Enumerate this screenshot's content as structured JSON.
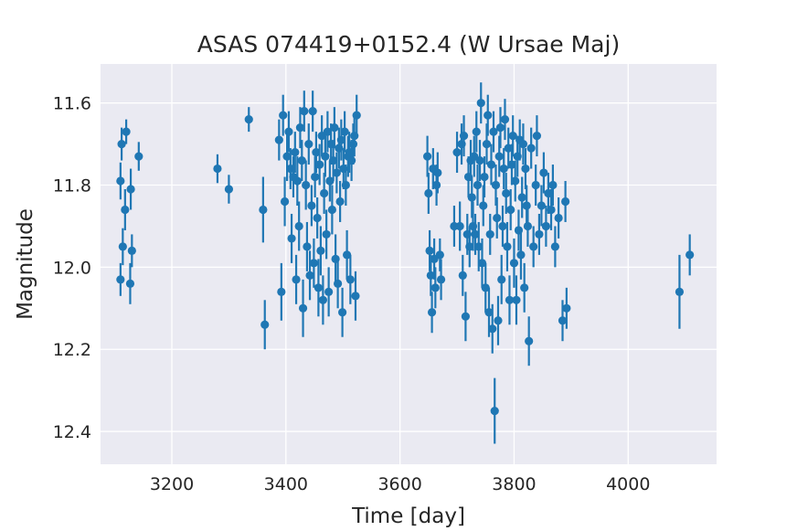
{
  "chart_data": {
    "type": "scatter",
    "title": "ASAS 074419+0152.4 (W Ursae Maj)",
    "xlabel": "Time [day]",
    "ylabel": "Magnitude",
    "xlim": [
      3075,
      4155
    ],
    "ylim": [
      12.48,
      11.505
    ],
    "y_inverted": true,
    "grid": true,
    "xticks": [
      3200,
      3400,
      3600,
      3800,
      4000
    ],
    "yticks": [
      11.6,
      11.8,
      12.0,
      12.2,
      12.4
    ],
    "xtick_labels": [
      "3200",
      "3400",
      "3600",
      "3800",
      "4000"
    ],
    "ytick_labels": [
      "11.6",
      "11.8",
      "12.0",
      "12.2",
      "12.4"
    ],
    "colors": {
      "background": "#eaeaf2",
      "grid": "#ffffff",
      "marker": "#1f77b4"
    },
    "points": [
      [
        3110,
        11.79,
        0.045
      ],
      [
        3112,
        11.7,
        0.04
      ],
      [
        3114,
        11.95,
        0.045
      ],
      [
        3118,
        11.86,
        0.05
      ],
      [
        3120,
        11.67,
        0.03
      ],
      [
        3110,
        12.03,
        0.04
      ],
      [
        3127,
        12.04,
        0.05
      ],
      [
        3128,
        11.81,
        0.05
      ],
      [
        3130,
        11.96,
        0.04
      ],
      [
        3142,
        11.73,
        0.035
      ],
      [
        3280,
        11.76,
        0.035
      ],
      [
        3300,
        11.81,
        0.035
      ],
      [
        3335,
        11.64,
        0.03
      ],
      [
        3360,
        11.86,
        0.08
      ],
      [
        3363,
        12.14,
        0.06
      ],
      [
        3388,
        11.69,
        0.05
      ],
      [
        3392,
        12.06,
        0.07
      ],
      [
        3395,
        11.63,
        0.05
      ],
      [
        3398,
        11.84,
        0.06
      ],
      [
        3402,
        11.73,
        0.06
      ],
      [
        3405,
        11.67,
        0.05
      ],
      [
        3408,
        11.76,
        0.05
      ],
      [
        3410,
        11.93,
        0.06
      ],
      [
        3413,
        11.78,
        0.05
      ],
      [
        3416,
        11.72,
        0.05
      ],
      [
        3418,
        12.03,
        0.06
      ],
      [
        3420,
        11.79,
        0.06
      ],
      [
        3423,
        11.9,
        0.06
      ],
      [
        3425,
        11.66,
        0.05
      ],
      [
        3428,
        11.74,
        0.05
      ],
      [
        3430,
        12.1,
        0.07
      ],
      [
        3432,
        11.62,
        0.05
      ],
      [
        3435,
        11.8,
        0.06
      ],
      [
        3437,
        11.95,
        0.06
      ],
      [
        3440,
        11.7,
        0.05
      ],
      [
        3442,
        12.02,
        0.06
      ],
      [
        3445,
        11.85,
        0.05
      ],
      [
        3447,
        11.62,
        0.05
      ],
      [
        3449,
        11.99,
        0.06
      ],
      [
        3451,
        11.78,
        0.05
      ],
      [
        3453,
        11.72,
        0.05
      ],
      [
        3455,
        11.88,
        0.05
      ],
      [
        3457,
        12.05,
        0.07
      ],
      [
        3459,
        11.75,
        0.05
      ],
      [
        3461,
        11.96,
        0.06
      ],
      [
        3463,
        11.68,
        0.05
      ],
      [
        3465,
        12.08,
        0.06
      ],
      [
        3467,
        11.82,
        0.05
      ],
      [
        3469,
        11.73,
        0.05
      ],
      [
        3471,
        11.92,
        0.06
      ],
      [
        3473,
        11.67,
        0.05
      ],
      [
        3475,
        12.06,
        0.06
      ],
      [
        3477,
        11.79,
        0.05
      ],
      [
        3479,
        11.7,
        0.05
      ],
      [
        3481,
        11.86,
        0.06
      ],
      [
        3483,
        11.74,
        0.05
      ],
      [
        3485,
        11.66,
        0.05
      ],
      [
        3487,
        11.98,
        0.06
      ],
      [
        3489,
        11.77,
        0.05
      ],
      [
        3491,
        12.04,
        0.06
      ],
      [
        3493,
        11.71,
        0.05
      ],
      [
        3495,
        11.84,
        0.05
      ],
      [
        3497,
        11.69,
        0.05
      ],
      [
        3499,
        12.11,
        0.06
      ],
      [
        3501,
        11.76,
        0.05
      ],
      [
        3503,
        11.67,
        0.05
      ],
      [
        3505,
        11.8,
        0.05
      ],
      [
        3507,
        11.97,
        0.06
      ],
      [
        3509,
        11.73,
        0.05
      ],
      [
        3511,
        11.72,
        0.05
      ],
      [
        3513,
        12.03,
        0.06
      ],
      [
        3515,
        11.74,
        0.05
      ],
      [
        3518,
        11.7,
        0.05
      ],
      [
        3520,
        11.68,
        0.05
      ],
      [
        3522,
        12.07,
        0.06
      ],
      [
        3524,
        11.63,
        0.05
      ],
      [
        3648,
        11.73,
        0.05
      ],
      [
        3650,
        11.82,
        0.05
      ],
      [
        3652,
        11.96,
        0.05
      ],
      [
        3654,
        12.02,
        0.05
      ],
      [
        3656,
        12.11,
        0.05
      ],
      [
        3658,
        11.76,
        0.05
      ],
      [
        3660,
        11.98,
        0.05
      ],
      [
        3662,
        12.05,
        0.05
      ],
      [
        3664,
        11.8,
        0.05
      ],
      [
        3666,
        11.77,
        0.05
      ],
      [
        3670,
        11.97,
        0.04
      ],
      [
        3672,
        12.03,
        0.05
      ],
      [
        3695,
        11.9,
        0.05
      ],
      [
        3700,
        11.72,
        0.05
      ],
      [
        3705,
        11.9,
        0.06
      ],
      [
        3708,
        11.7,
        0.05
      ],
      [
        3710,
        12.02,
        0.05
      ],
      [
        3712,
        11.68,
        0.05
      ],
      [
        3715,
        12.12,
        0.06
      ],
      [
        3718,
        11.92,
        0.05
      ],
      [
        3720,
        11.78,
        0.05
      ],
      [
        3722,
        11.95,
        0.05
      ],
      [
        3724,
        11.74,
        0.05
      ],
      [
        3726,
        11.83,
        0.05
      ],
      [
        3728,
        11.9,
        0.06
      ],
      [
        3730,
        11.73,
        0.05
      ],
      [
        3732,
        11.92,
        0.05
      ],
      [
        3734,
        11.67,
        0.05
      ],
      [
        3736,
        11.8,
        0.05
      ],
      [
        3738,
        11.95,
        0.06
      ],
      [
        3740,
        11.74,
        0.05
      ],
      [
        3742,
        11.6,
        0.05
      ],
      [
        3744,
        11.99,
        0.06
      ],
      [
        3746,
        11.85,
        0.05
      ],
      [
        3748,
        11.78,
        0.05
      ],
      [
        3750,
        12.05,
        0.06
      ],
      [
        3752,
        11.7,
        0.05
      ],
      [
        3754,
        11.63,
        0.05
      ],
      [
        3756,
        12.11,
        0.06
      ],
      [
        3758,
        11.92,
        0.05
      ],
      [
        3760,
        11.75,
        0.05
      ],
      [
        3762,
        12.15,
        0.06
      ],
      [
        3764,
        11.67,
        0.05
      ],
      [
        3766,
        12.35,
        0.08
      ],
      [
        3768,
        11.8,
        0.05
      ],
      [
        3770,
        11.88,
        0.05
      ],
      [
        3772,
        12.13,
        0.06
      ],
      [
        3774,
        11.73,
        0.05
      ],
      [
        3776,
        11.66,
        0.05
      ],
      [
        3778,
        12.03,
        0.06
      ],
      [
        3780,
        11.9,
        0.05
      ],
      [
        3782,
        11.76,
        0.05
      ],
      [
        3784,
        11.64,
        0.05
      ],
      [
        3786,
        11.82,
        0.05
      ],
      [
        3788,
        11.95,
        0.06
      ],
      [
        3790,
        11.71,
        0.05
      ],
      [
        3792,
        12.08,
        0.06
      ],
      [
        3794,
        11.86,
        0.05
      ],
      [
        3796,
        11.75,
        0.05
      ],
      [
        3798,
        11.68,
        0.05
      ],
      [
        3800,
        11.99,
        0.06
      ],
      [
        3802,
        11.79,
        0.05
      ],
      [
        3804,
        12.08,
        0.06
      ],
      [
        3806,
        11.73,
        0.05
      ],
      [
        3808,
        11.91,
        0.05
      ],
      [
        3810,
        11.69,
        0.05
      ],
      [
        3812,
        11.97,
        0.06
      ],
      [
        3814,
        11.83,
        0.05
      ],
      [
        3816,
        11.7,
        0.05
      ],
      [
        3818,
        12.05,
        0.06
      ],
      [
        3820,
        11.76,
        0.05
      ],
      [
        3822,
        11.85,
        0.05
      ],
      [
        3824,
        11.9,
        0.05
      ],
      [
        3826,
        12.18,
        0.06
      ],
      [
        3830,
        11.71,
        0.05
      ],
      [
        3834,
        11.95,
        0.05
      ],
      [
        3838,
        11.8,
        0.05
      ],
      [
        3840,
        11.68,
        0.05
      ],
      [
        3844,
        11.92,
        0.05
      ],
      [
        3848,
        11.85,
        0.05
      ],
      [
        3852,
        11.77,
        0.05
      ],
      [
        3856,
        11.9,
        0.05
      ],
      [
        3860,
        11.82,
        0.05
      ],
      [
        3865,
        11.86,
        0.05
      ],
      [
        3868,
        11.8,
        0.05
      ],
      [
        3872,
        11.95,
        0.05
      ],
      [
        3878,
        11.88,
        0.05
      ],
      [
        3885,
        12.13,
        0.05
      ],
      [
        3890,
        11.84,
        0.05
      ],
      [
        3892,
        12.1,
        0.05
      ],
      [
        4090,
        12.06,
        0.09
      ],
      [
        4108,
        11.97,
        0.05
      ]
    ]
  }
}
